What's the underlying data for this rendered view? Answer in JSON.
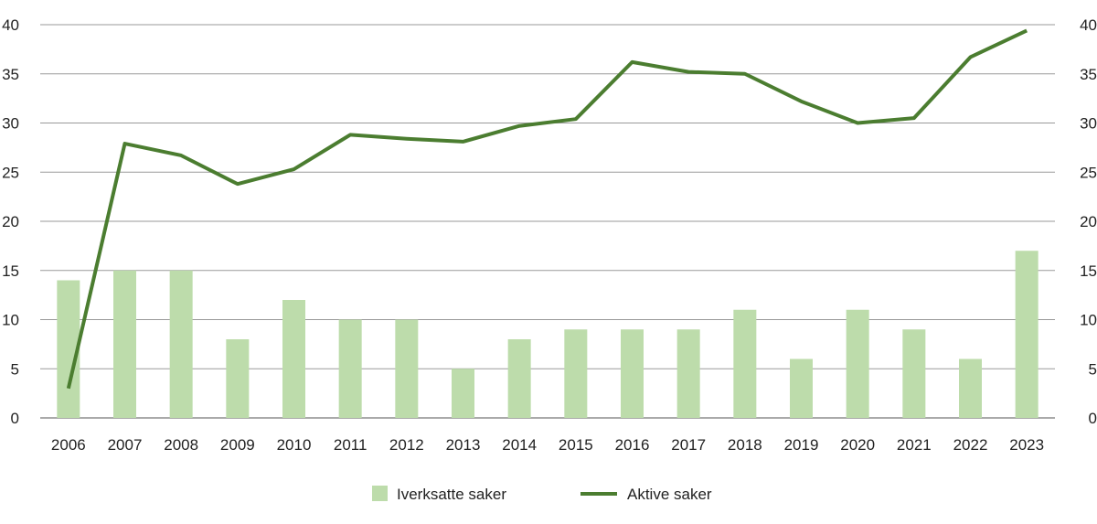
{
  "chart_data": {
    "type": "bar+line",
    "title": "",
    "xlabel": "",
    "ylabel": "",
    "ylim": [
      0,
      40
    ],
    "y_ticks": [
      0,
      5,
      10,
      15,
      20,
      25,
      30,
      35,
      40
    ],
    "secondary_y_ticks": [
      0,
      5,
      10,
      15,
      20,
      25,
      30,
      35,
      40
    ],
    "grid": true,
    "legend_placement": "bottom",
    "categories": [
      "2006",
      "2007",
      "2008",
      "2009",
      "2010",
      "2011",
      "2012",
      "2013",
      "2014",
      "2015",
      "2016",
      "2017",
      "2018",
      "2019",
      "2020",
      "2021",
      "2022",
      "2023"
    ],
    "series": [
      {
        "name": "Iverksatte saker",
        "type": "bar",
        "color": "#bddcab",
        "values": [
          14,
          15,
          15,
          8,
          12,
          10,
          10,
          5,
          8,
          9,
          9,
          9,
          11,
          6,
          11,
          9,
          6,
          17
        ]
      },
      {
        "name": "Aktive saker",
        "type": "line",
        "color": "#4b7d30",
        "values": [
          3,
          27.9,
          26.7,
          23.8,
          25.3,
          28.8,
          28.4,
          28.1,
          29.7,
          30.4,
          36.2,
          35.2,
          35,
          32.2,
          30,
          30.5,
          36.7,
          39.4
        ]
      }
    ]
  }
}
